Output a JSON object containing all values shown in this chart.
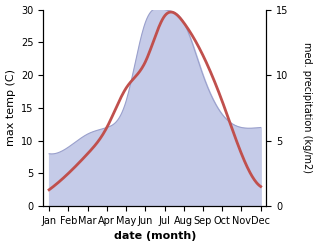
{
  "months": [
    "Jan",
    "Feb",
    "Mar",
    "Apr",
    "May",
    "Jun",
    "Jul",
    "Aug",
    "Sep",
    "Oct",
    "Nov",
    "Dec"
  ],
  "temp": [
    2.5,
    5.0,
    8.0,
    12.0,
    18.0,
    22.0,
    29.0,
    28.0,
    23.0,
    16.0,
    8.0,
    3.0
  ],
  "precip": [
    4.0,
    4.5,
    5.5,
    6.0,
    8.0,
    14.0,
    15.0,
    14.0,
    10.0,
    7.0,
    6.0,
    6.0
  ],
  "temp_color": "#c0504d",
  "precip_fill_color": "#c5cbe8",
  "precip_line_color": "#9aa0cc",
  "ylabel_left": "max temp (C)",
  "ylabel_right": "med. precipitation (kg/m2)",
  "xlabel": "date (month)",
  "ylim_left": [
    0,
    30
  ],
  "ylim_right": [
    0,
    15
  ],
  "yticks_left": [
    0,
    5,
    10,
    15,
    20,
    25,
    30
  ],
  "yticks_right": [
    0,
    5,
    10,
    15
  ],
  "bg_color": "#ffffff"
}
